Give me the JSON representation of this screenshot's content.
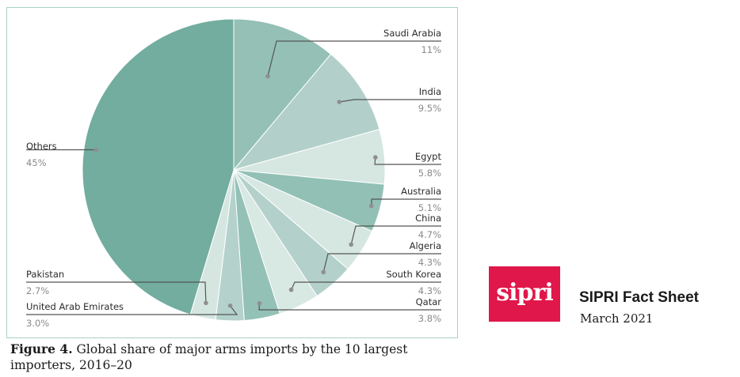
{
  "chart_data": {
    "type": "pie",
    "title": "",
    "categories": [
      "Saudi Arabia",
      "India",
      "Egypt",
      "Australia",
      "China",
      "Algeria",
      "South Korea",
      "Qatar",
      "United Arab Emirates",
      "Pakistan",
      "Others"
    ],
    "values": [
      11,
      9.5,
      5.8,
      5.1,
      4.7,
      4.3,
      4.3,
      3.8,
      3.0,
      2.7,
      45
    ],
    "value_labels": [
      "11%",
      "9.5%",
      "5.8%",
      "5.1%",
      "4.7%",
      "4.3%",
      "4.3%",
      "3.8%",
      "3.0%",
      "2.7%",
      "45%"
    ],
    "colors": [
      "#94c0b6",
      "#b2d0c9",
      "#d6e6e1",
      "#92c0b5",
      "#d6e7e2",
      "#b3d1ca",
      "#d8e8e3",
      "#94c1b6",
      "#b4d2cb",
      "#d5e6e1",
      "#72ad9f"
    ],
    "start_angle_deg": 0,
    "direction": "clockwise"
  },
  "caption": {
    "label": "Figure 4.",
    "text": " Global share of major arms imports by the 10 largest importers, 2016–20"
  },
  "branding": {
    "logo_text": "sipri",
    "logo_color": "#e0174a",
    "title": "SIPRI Fact Sheet",
    "date": "March 2021"
  }
}
